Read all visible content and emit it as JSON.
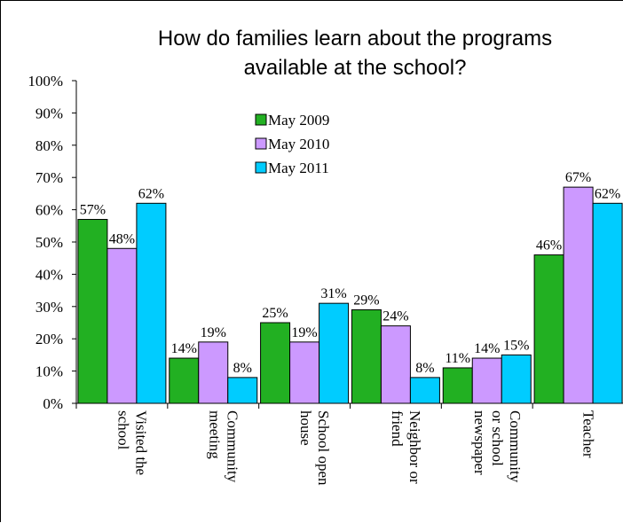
{
  "chart_data": {
    "type": "bar",
    "title_lines": [
      "How do families learn about the programs",
      "available at the school?"
    ],
    "categories": [
      [
        "Visited the",
        "school"
      ],
      [
        "Community",
        "meeting"
      ],
      [
        "School open",
        "house"
      ],
      [
        "Neighbor or",
        "friend"
      ],
      [
        "Community",
        "or school",
        "newspaper"
      ],
      [
        "Teacher"
      ]
    ],
    "series": [
      {
        "name": "May 2009",
        "color": "#22b022",
        "values": [
          57,
          14,
          25,
          29,
          11,
          46
        ],
        "labels": [
          "57%",
          "14%",
          "25%",
          "29%",
          "11%",
          "46%"
        ]
      },
      {
        "name": "May 2010",
        "color": "#cc99ff",
        "values": [
          48,
          19,
          19,
          24,
          14,
          67
        ],
        "labels": [
          "48%",
          "19%",
          "19%",
          "24%",
          "14%",
          "67%"
        ]
      },
      {
        "name": "May 2011",
        "color": "#00ccff",
        "values": [
          62,
          8,
          31,
          8,
          15,
          62
        ],
        "labels": [
          "62%",
          "8%",
          "31%",
          "8%",
          "15%",
          "62%"
        ]
      }
    ],
    "yticks": [
      "0%",
      "10%",
      "20%",
      "30%",
      "40%",
      "50%",
      "60%",
      "70%",
      "80%",
      "90%",
      "100%"
    ],
    "ylim": [
      0,
      100
    ],
    "grid": false,
    "legend_position": "top-center"
  }
}
